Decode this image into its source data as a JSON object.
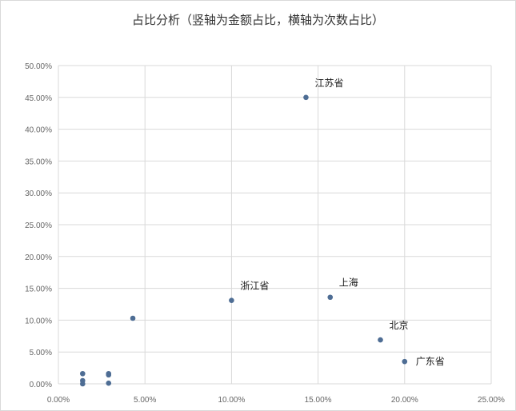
{
  "chart_data": {
    "type": "scatter",
    "title": "占比分析（竖轴为金额占比，横轴为次数占比）",
    "xlim": [
      0,
      25
    ],
    "ylim": [
      0,
      50
    ],
    "x_ticks": [
      "0.00%",
      "5.00%",
      "10.00%",
      "15.00%",
      "20.00%",
      "25.00%"
    ],
    "y_ticks": [
      "0.00%",
      "5.00%",
      "10.00%",
      "15.00%",
      "20.00%",
      "25.00%",
      "30.00%",
      "35.00%",
      "40.00%",
      "45.00%",
      "50.00%"
    ],
    "grid": true,
    "marker_color": "#4e6d94",
    "points": [
      {
        "label": "江苏省",
        "x": 14.3,
        "y": 45.0
      },
      {
        "label": "浙江省",
        "x": 10.0,
        "y": 13.1
      },
      {
        "label": "上海",
        "x": 15.7,
        "y": 13.6
      },
      {
        "label": "北京",
        "x": 18.6,
        "y": 6.9
      },
      {
        "label": "广东省",
        "x": 20.0,
        "y": 3.5
      },
      {
        "label": "",
        "x": 4.3,
        "y": 10.3
      },
      {
        "label": "",
        "x": 1.4,
        "y": 1.6
      },
      {
        "label": "",
        "x": 1.4,
        "y": 0.5
      },
      {
        "label": "",
        "x": 1.4,
        "y": 0.0
      },
      {
        "label": "",
        "x": 2.9,
        "y": 1.6
      },
      {
        "label": "",
        "x": 2.9,
        "y": 1.4
      },
      {
        "label": "",
        "x": 2.9,
        "y": 0.1
      }
    ]
  }
}
